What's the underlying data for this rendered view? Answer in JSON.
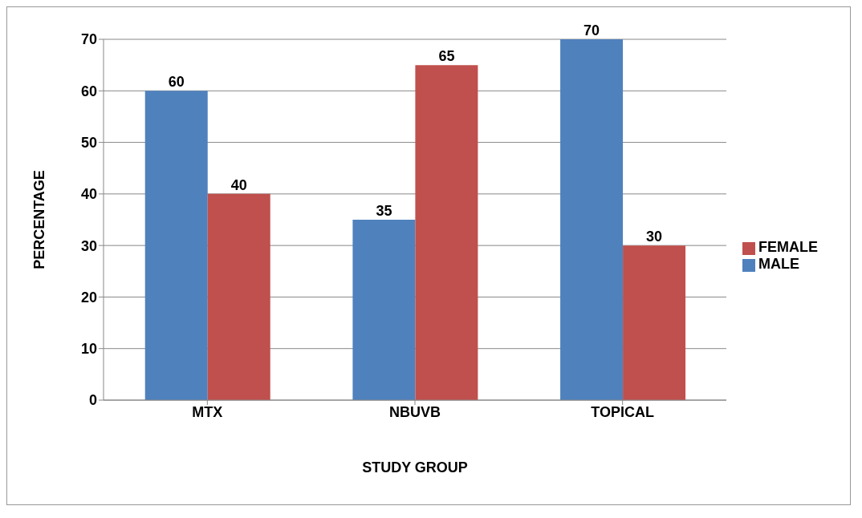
{
  "chart_data": {
    "type": "bar",
    "xlabel": "STUDY GROUP",
    "ylabel": "PERCENTAGE",
    "categories": [
      "MTX",
      "NBUVB",
      "TOPICAL"
    ],
    "series": [
      {
        "name": "MALE",
        "color": "#4f81bd",
        "values": [
          60,
          35,
          70
        ]
      },
      {
        "name": "FEMALE",
        "color": "#c0504d",
        "values": [
          40,
          65,
          30
        ]
      }
    ],
    "ylim": [
      0,
      70
    ],
    "yticks": [
      0,
      10,
      20,
      30,
      40,
      50,
      60,
      70
    ],
    "grid": "y",
    "legend": "right",
    "data_labels": true
  }
}
